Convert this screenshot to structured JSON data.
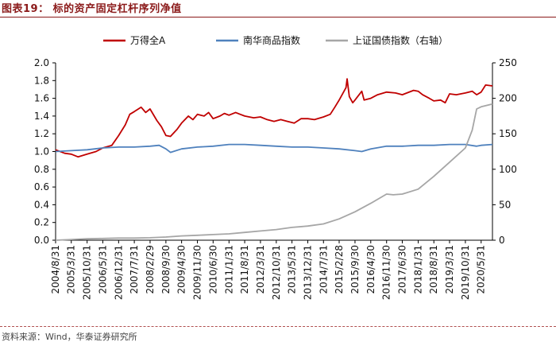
{
  "figure": {
    "title": "图表19： 标的资产固定杠杆序列净值",
    "source": "资料来源：Wind，华泰证券研究所"
  },
  "chart_data": {
    "type": "line",
    "title": "",
    "legend_position": "top",
    "grid": false,
    "x_ticks": [
      "2004/8/31",
      "2005/3/31",
      "2005/10/31",
      "2006/5/31",
      "2006/12/31",
      "2007/7/31",
      "2008/2/29",
      "2008/9/30",
      "2009/4/30",
      "2009/11/30",
      "2010/6/30",
      "2011/1/31",
      "2011/8/31",
      "2012/3/31",
      "2012/10/31",
      "2013/5/31",
      "2013/12/31",
      "2014/7/31",
      "2015/2/28",
      "2015/9/30",
      "2016/4/30",
      "2016/11/30",
      "2017/6/30",
      "2018/1/31",
      "2018/8/31",
      "2019/3/31",
      "2019/10/31",
      "2020/5/31"
    ],
    "y_left": {
      "ylim": [
        0.0,
        2.0
      ],
      "ticks": [
        "0.0",
        "0.2",
        "0.4",
        "0.6",
        "0.8",
        "1.0",
        "1.2",
        "1.4",
        "1.6",
        "1.8",
        "2.0"
      ]
    },
    "y_right": {
      "ylim": [
        0,
        250
      ],
      "ticks": [
        "0",
        "50",
        "100",
        "150",
        "200",
        "250"
      ]
    },
    "series": [
      {
        "name": "万得全A",
        "axis": "left",
        "color": "#c00000",
        "points": [
          [
            "2004/8/31",
            1.02
          ],
          [
            "2004/12/31",
            0.98
          ],
          [
            "2005/3/31",
            0.97
          ],
          [
            "2005/6/30",
            0.94
          ],
          [
            "2005/10/31",
            0.97
          ],
          [
            "2006/2/28",
            1.0
          ],
          [
            "2006/5/31",
            1.04
          ],
          [
            "2006/9/30",
            1.07
          ],
          [
            "2006/12/31",
            1.18
          ],
          [
            "2007/3/31",
            1.3
          ],
          [
            "2007/5/31",
            1.42
          ],
          [
            "2007/7/31",
            1.45
          ],
          [
            "2007/10/31",
            1.5
          ],
          [
            "2007/12/31",
            1.44
          ],
          [
            "2008/2/29",
            1.48
          ],
          [
            "2008/5/31",
            1.35
          ],
          [
            "2008/7/31",
            1.28
          ],
          [
            "2008/9/30",
            1.18
          ],
          [
            "2008/11/30",
            1.17
          ],
          [
            "2009/2/28",
            1.25
          ],
          [
            "2009/4/30",
            1.32
          ],
          [
            "2009/7/31",
            1.4
          ],
          [
            "2009/9/30",
            1.36
          ],
          [
            "2009/11/30",
            1.42
          ],
          [
            "2010/2/28",
            1.4
          ],
          [
            "2010/4/30",
            1.44
          ],
          [
            "2010/6/30",
            1.37
          ],
          [
            "2010/9/30",
            1.4
          ],
          [
            "2010/11/30",
            1.43
          ],
          [
            "2011/1/31",
            1.41
          ],
          [
            "2011/4/30",
            1.44
          ],
          [
            "2011/6/30",
            1.42
          ],
          [
            "2011/8/31",
            1.4
          ],
          [
            "2011/12/31",
            1.38
          ],
          [
            "2012/3/31",
            1.39
          ],
          [
            "2012/6/30",
            1.36
          ],
          [
            "2012/9/30",
            1.34
          ],
          [
            "2012/12/31",
            1.36
          ],
          [
            "2013/3/31",
            1.34
          ],
          [
            "2013/6/30",
            1.32
          ],
          [
            "2013/9/30",
            1.37
          ],
          [
            "2013/12/31",
            1.37
          ],
          [
            "2014/3/31",
            1.36
          ],
          [
            "2014/7/31",
            1.39
          ],
          [
            "2014/10/31",
            1.42
          ],
          [
            "2014/12/31",
            1.5
          ],
          [
            "2015/2/28",
            1.58
          ],
          [
            "2015/5/31",
            1.72
          ],
          [
            "2015/6/15",
            1.82
          ],
          [
            "2015/7/15",
            1.62
          ],
          [
            "2015/8/31",
            1.55
          ],
          [
            "2015/9/30",
            1.58
          ],
          [
            "2015/12/31",
            1.68
          ],
          [
            "2016/1/31",
            1.58
          ],
          [
            "2016/4/30",
            1.6
          ],
          [
            "2016/7/31",
            1.64
          ],
          [
            "2016/11/30",
            1.67
          ],
          [
            "2017/3/31",
            1.66
          ],
          [
            "2017/6/30",
            1.64
          ],
          [
            "2017/11/30",
            1.69
          ],
          [
            "2018/1/31",
            1.68
          ],
          [
            "2018/3/31",
            1.64
          ],
          [
            "2018/6/30",
            1.6
          ],
          [
            "2018/8/31",
            1.57
          ],
          [
            "2018/11/30",
            1.58
          ],
          [
            "2019/1/31",
            1.55
          ],
          [
            "2019/3/31",
            1.65
          ],
          [
            "2019/6/30",
            1.64
          ],
          [
            "2019/10/31",
            1.66
          ],
          [
            "2020/1/31",
            1.68
          ],
          [
            "2020/3/31",
            1.64
          ],
          [
            "2020/5/31",
            1.67
          ],
          [
            "2020/7/31",
            1.75
          ],
          [
            "2020/10/31",
            1.74
          ]
        ]
      },
      {
        "name": "南华商品指数",
        "axis": "left",
        "color": "#4f81bd",
        "points": [
          [
            "2004/8/31",
            1.0
          ],
          [
            "2005/3/31",
            1.01
          ],
          [
            "2005/10/31",
            1.02
          ],
          [
            "2006/5/31",
            1.04
          ],
          [
            "2006/12/31",
            1.05
          ],
          [
            "2007/7/31",
            1.05
          ],
          [
            "2008/2/29",
            1.06
          ],
          [
            "2008/6/30",
            1.07
          ],
          [
            "2008/9/30",
            1.03
          ],
          [
            "2008/11/30",
            0.99
          ],
          [
            "2009/4/30",
            1.03
          ],
          [
            "2009/11/30",
            1.05
          ],
          [
            "2010/6/30",
            1.06
          ],
          [
            "2011/1/31",
            1.08
          ],
          [
            "2011/8/31",
            1.08
          ],
          [
            "2012/3/31",
            1.07
          ],
          [
            "2012/10/31",
            1.06
          ],
          [
            "2013/5/31",
            1.05
          ],
          [
            "2013/12/31",
            1.05
          ],
          [
            "2014/7/31",
            1.04
          ],
          [
            "2015/2/28",
            1.03
          ],
          [
            "2015/9/30",
            1.01
          ],
          [
            "2015/12/31",
            1.0
          ],
          [
            "2016/4/30",
            1.03
          ],
          [
            "2016/11/30",
            1.06
          ],
          [
            "2017/6/30",
            1.06
          ],
          [
            "2018/1/31",
            1.07
          ],
          [
            "2018/8/31",
            1.07
          ],
          [
            "2019/3/31",
            1.08
          ],
          [
            "2019/10/31",
            1.08
          ],
          [
            "2020/3/31",
            1.06
          ],
          [
            "2020/5/31",
            1.07
          ],
          [
            "2020/10/31",
            1.08
          ]
        ]
      },
      {
        "name": "上证国债指数（右轴）",
        "axis": "right",
        "color": "#a6a6a6",
        "points": [
          [
            "2004/8/31",
            0
          ],
          [
            "2005/3/31",
            1
          ],
          [
            "2005/10/31",
            2
          ],
          [
            "2006/5/31",
            2.5
          ],
          [
            "2006/12/31",
            3
          ],
          [
            "2007/7/31",
            3
          ],
          [
            "2008/2/29",
            3.5
          ],
          [
            "2008/9/30",
            4.5
          ],
          [
            "2009/4/30",
            6
          ],
          [
            "2009/11/30",
            7
          ],
          [
            "2010/6/30",
            8
          ],
          [
            "2011/1/31",
            9
          ],
          [
            "2011/8/31",
            11
          ],
          [
            "2012/3/31",
            13
          ],
          [
            "2012/10/31",
            15
          ],
          [
            "2013/5/31",
            18
          ],
          [
            "2013/12/31",
            20
          ],
          [
            "2014/7/31",
            23
          ],
          [
            "2015/2/28",
            30
          ],
          [
            "2015/9/30",
            40
          ],
          [
            "2016/4/30",
            52
          ],
          [
            "2016/11/30",
            65
          ],
          [
            "2017/2/28",
            64
          ],
          [
            "2017/6/30",
            65
          ],
          [
            "2018/1/31",
            72
          ],
          [
            "2018/8/31",
            90
          ],
          [
            "2019/3/31",
            110
          ],
          [
            "2019/10/31",
            130
          ],
          [
            "2020/1/31",
            155
          ],
          [
            "2020/3/31",
            185
          ],
          [
            "2020/5/31",
            188
          ],
          [
            "2020/10/31",
            192
          ]
        ]
      }
    ]
  }
}
